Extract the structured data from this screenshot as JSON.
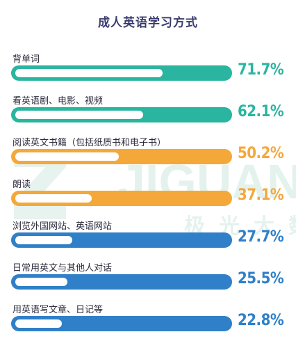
{
  "chart_data": {
    "type": "bar",
    "title": "成人英语学习方式",
    "categories": [
      "背单词",
      "看英语剧、电影、视频",
      "阅读英文书籍（包括纸质书和电子书）",
      "朗读",
      "浏览外国网站、英语网站",
      "日常用英文与其他人对话",
      "用英语写文章、日记等"
    ],
    "values": [
      71.7,
      62.1,
      50.2,
      37.1,
      27.7,
      25.5,
      22.8
    ],
    "value_labels": [
      "71.7%",
      "62.1%",
      "50.2%",
      "37.1%",
      "27.7%",
      "25.5%",
      "22.8%"
    ],
    "colors": [
      "#2ab5a0",
      "#2ab5a0",
      "#f5a83a",
      "#f5a83a",
      "#2f80c8",
      "#2f80c8",
      "#2f80c8"
    ],
    "ylim": [
      0,
      100
    ],
    "orientation": "horizontal",
    "grid": false
  },
  "watermark": {
    "latin": "JIGUAN",
    "cjk": "极光大数"
  }
}
